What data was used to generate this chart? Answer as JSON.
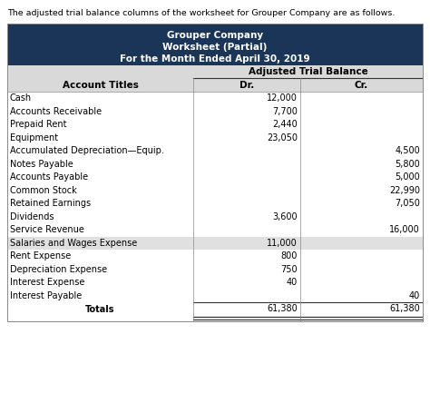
{
  "intro_text": "The adjusted trial balance columns of the worksheet for Grouper Company are as follows.",
  "header_line1": "Grouper Company",
  "header_line2": "Worksheet (Partial)",
  "header_line3": "For the Month Ended April 30, 2019",
  "col_header_span": "Adjusted Trial Balance",
  "col_dr": "Dr.",
  "col_cr": "Cr.",
  "col_account": "Account Titles",
  "header_bg": "#1B3558",
  "header_fg": "#FFFFFF",
  "subheader_bg": "#D9D9D9",
  "rows": [
    [
      "Cash",
      "12,000",
      ""
    ],
    [
      "Accounts Receivable",
      "7,700",
      ""
    ],
    [
      "Prepaid Rent",
      "2,440",
      ""
    ],
    [
      "Equipment",
      "23,050",
      ""
    ],
    [
      "Accumulated Depreciation—Equip.",
      "",
      "4,500"
    ],
    [
      "Notes Payable",
      "",
      "5,800"
    ],
    [
      "Accounts Payable",
      "",
      "5,000"
    ],
    [
      "Common Stock",
      "",
      "22,990"
    ],
    [
      "Retained Earnings",
      "",
      "7,050"
    ],
    [
      "Dividends",
      "3,600",
      ""
    ],
    [
      "Service Revenue",
      "",
      "16,000"
    ],
    [
      "Salaries and Wages Expense",
      "11,000",
      ""
    ],
    [
      "Rent Expense",
      "800",
      ""
    ],
    [
      "Depreciation Expense",
      "750",
      ""
    ],
    [
      "Interest Expense",
      "40",
      ""
    ],
    [
      "Interest Payable",
      "",
      "40"
    ]
  ],
  "totals_label": "Totals",
  "totals_dr": "61,380",
  "totals_cr": "61,380",
  "shaded_row_indices": [
    11
  ],
  "shaded_bg": "#E0E0E0",
  "fig_width": 4.74,
  "fig_height": 4.44,
  "dpi": 100
}
